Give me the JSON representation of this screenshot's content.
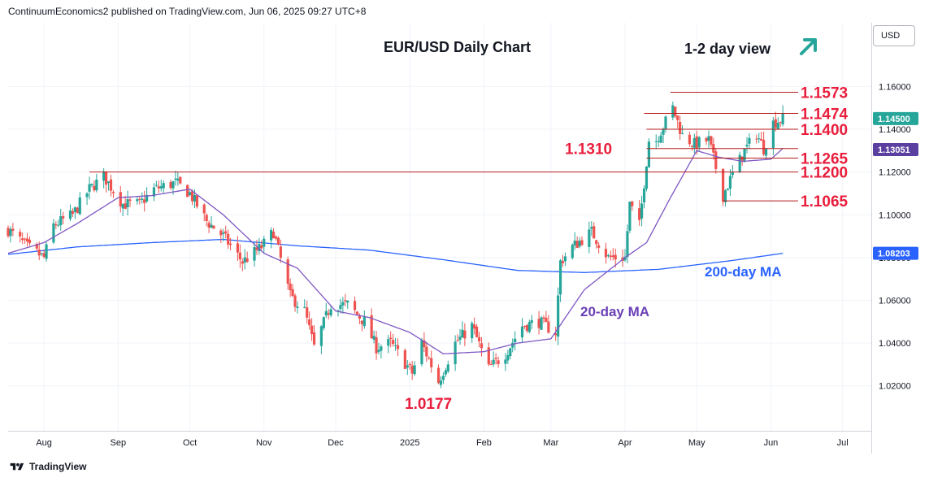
{
  "header": {
    "publisher": "ContinuumEconomics2 published on TradingView.com, Jun 06, 2025 09:27 UTC+8"
  },
  "currency": "USD",
  "footer": {
    "brand": "TradingView",
    "logo_icon": "tradingview-logo-icon"
  },
  "colors": {
    "bull": "#26a69a",
    "bear": "#ef5350",
    "ma20": "#7e57c2",
    "ma200": "#2962ff",
    "level": "#e91e3c",
    "ma20_text": "#6a3fb5",
    "ma200_text": "#2962ff",
    "arrow": "#26a69a"
  },
  "chart_data": {
    "type": "candlestick",
    "title": "EUR/USD Daily Chart",
    "subtitle": "1-2 day view",
    "view_arrow_icon": "up-right-arrow-icon",
    "y_ticks": [
      "1.02000",
      "1.04000",
      "1.06000",
      "1.08000",
      "1.10000",
      "1.12000",
      "1.14000",
      "1.16000"
    ],
    "ylim": [
      0.999,
      1.1898
    ],
    "x_ticks": [
      "Aug",
      "Sep",
      "Oct",
      "Nov",
      "Dec",
      "2025",
      "Feb",
      "Mar",
      "Apr",
      "May",
      "Jun",
      "Jul"
    ],
    "x_tick_dates": [
      "2024-08-01",
      "2024-09-01",
      "2024-10-01",
      "2024-11-01",
      "2024-12-01",
      "2025-01-01",
      "2025-02-01",
      "2025-03-01",
      "2025-04-01",
      "2025-05-01",
      "2025-06-01",
      "2025-07-01"
    ],
    "xlim": [
      "2024-07-17",
      "2025-07-13"
    ],
    "price_labels": [
      {
        "label": "1.14500",
        "value": 1.145,
        "bg": "#26a69a"
      },
      {
        "label": "1.13051",
        "value": 1.1305,
        "bg": "#5b3fa0"
      },
      {
        "label": "1.08203",
        "value": 1.082,
        "bg": "#2962ff"
      }
    ],
    "levels": [
      {
        "label": "1.1573",
        "value": 1.1573,
        "from": "2025-04-20"
      },
      {
        "label": "1.1474",
        "value": 1.1474,
        "from": "2025-04-09"
      },
      {
        "label": "1.1400",
        "value": 1.14,
        "from": "2025-04-10"
      },
      {
        "label": "1.1310",
        "value": 1.131,
        "from": "2025-04-10"
      },
      {
        "label": "1.1265",
        "value": 1.1265,
        "from": "2025-04-10"
      },
      {
        "label": "1.1200",
        "value": 1.12,
        "from": "2024-08-20"
      },
      {
        "label": "1.1065",
        "value": 1.1065,
        "from": "2025-05-12"
      }
    ],
    "annotations": [
      {
        "id": "low",
        "label": "1.0177"
      },
      {
        "id": "ma20",
        "label": "20-day MA"
      },
      {
        "id": "ma200",
        "label": "200-day MA"
      }
    ],
    "close_path": [
      [
        "2024-07-17",
        1.093
      ],
      [
        "2024-07-25",
        1.085
      ],
      [
        "2024-08-01",
        1.08
      ],
      [
        "2024-08-05",
        1.095
      ],
      [
        "2024-08-13",
        1.1
      ],
      [
        "2024-08-20",
        1.112
      ],
      [
        "2024-08-26",
        1.118
      ],
      [
        "2024-09-03",
        1.105
      ],
      [
        "2024-09-10",
        1.105
      ],
      [
        "2024-09-16",
        1.112
      ],
      [
        "2024-09-25",
        1.115
      ],
      [
        "2024-10-01",
        1.11
      ],
      [
        "2024-10-08",
        1.097
      ],
      [
        "2024-10-15",
        1.09
      ],
      [
        "2024-10-23",
        1.078
      ],
      [
        "2024-10-31",
        1.085
      ],
      [
        "2024-11-05",
        1.092
      ],
      [
        "2024-11-12",
        1.062
      ],
      [
        "2024-11-18",
        1.055
      ],
      [
        "2024-11-22",
        1.038
      ],
      [
        "2024-11-29",
        1.058
      ],
      [
        "2024-12-06",
        1.058
      ],
      [
        "2024-12-13",
        1.05
      ],
      [
        "2024-12-18",
        1.038
      ],
      [
        "2024-12-24",
        1.04
      ],
      [
        "2025-01-02",
        1.026
      ],
      [
        "2025-01-06",
        1.04
      ],
      [
        "2025-01-13",
        1.022
      ],
      [
        "2025-01-20",
        1.04
      ],
      [
        "2025-01-27",
        1.048
      ],
      [
        "2025-02-03",
        1.028
      ],
      [
        "2025-02-10",
        1.035
      ],
      [
        "2025-02-17",
        1.048
      ],
      [
        "2025-02-24",
        1.05
      ],
      [
        "2025-03-03",
        1.045
      ],
      [
        "2025-03-05",
        1.078
      ],
      [
        "2025-03-10",
        1.085
      ],
      [
        "2025-03-18",
        1.092
      ],
      [
        "2025-03-25",
        1.08
      ],
      [
        "2025-04-01",
        1.08
      ],
      [
        "2025-04-03",
        1.105
      ],
      [
        "2025-04-07",
        1.095
      ],
      [
        "2025-04-11",
        1.135
      ],
      [
        "2025-04-14",
        1.135
      ],
      [
        "2025-04-21",
        1.15
      ],
      [
        "2025-04-25",
        1.137
      ],
      [
        "2025-04-30",
        1.133
      ],
      [
        "2025-05-06",
        1.135
      ],
      [
        "2025-05-12",
        1.109
      ],
      [
        "2025-05-16",
        1.119
      ],
      [
        "2025-05-21",
        1.13
      ],
      [
        "2025-05-26",
        1.138
      ],
      [
        "2025-05-29",
        1.131
      ],
      [
        "2025-06-02",
        1.143
      ],
      [
        "2025-06-06",
        1.145
      ]
    ],
    "ma20_path": [
      [
        "2024-07-17",
        1.082
      ],
      [
        "2024-08-01",
        1.087
      ],
      [
        "2024-08-15",
        1.096
      ],
      [
        "2024-09-01",
        1.108
      ],
      [
        "2024-09-15",
        1.109
      ],
      [
        "2024-10-01",
        1.112
      ],
      [
        "2024-10-15",
        1.1
      ],
      [
        "2024-11-01",
        1.082
      ],
      [
        "2024-11-15",
        1.075
      ],
      [
        "2024-12-01",
        1.055
      ],
      [
        "2024-12-15",
        1.052
      ],
      [
        "2025-01-01",
        1.045
      ],
      [
        "2025-01-15",
        1.035
      ],
      [
        "2025-02-01",
        1.036
      ],
      [
        "2025-02-15",
        1.04
      ],
      [
        "2025-03-01",
        1.042
      ],
      [
        "2025-03-15",
        1.065
      ],
      [
        "2025-04-01",
        1.08
      ],
      [
        "2025-04-10",
        1.087
      ],
      [
        "2025-04-20",
        1.108
      ],
      [
        "2025-05-01",
        1.13
      ],
      [
        "2025-05-10",
        1.127
      ],
      [
        "2025-05-20",
        1.125
      ],
      [
        "2025-06-01",
        1.126
      ],
      [
        "2025-06-06",
        1.131
      ]
    ],
    "ma200_path": [
      [
        "2024-07-17",
        1.0815
      ],
      [
        "2024-08-15",
        1.085
      ],
      [
        "2024-09-15",
        1.087
      ],
      [
        "2024-10-15",
        1.0885
      ],
      [
        "2024-11-15",
        1.0855
      ],
      [
        "2024-12-15",
        1.0835
      ],
      [
        "2025-01-15",
        1.079
      ],
      [
        "2025-02-15",
        1.074
      ],
      [
        "2025-03-15",
        1.073
      ],
      [
        "2025-04-15",
        1.0745
      ],
      [
        "2025-05-15",
        1.0785
      ],
      [
        "2025-06-06",
        1.082
      ]
    ]
  }
}
